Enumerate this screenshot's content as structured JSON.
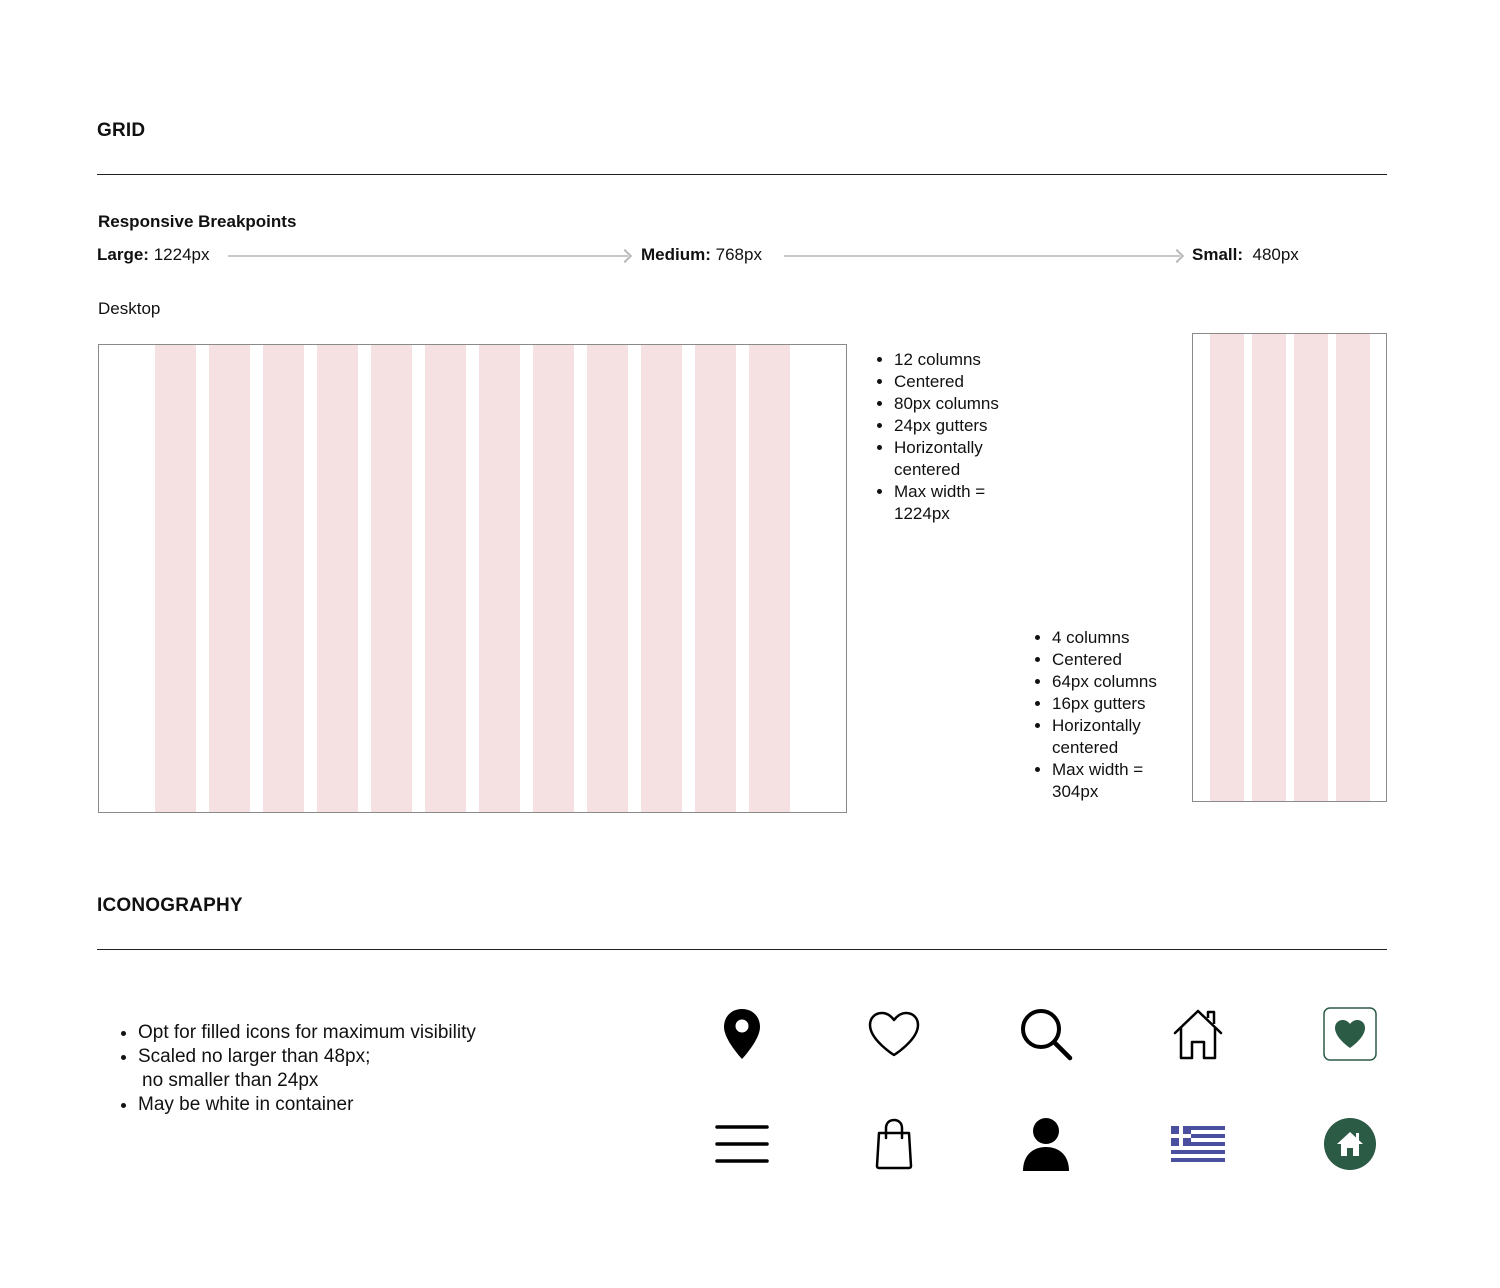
{
  "grid_section": {
    "title": "GRID",
    "breakpoints_heading": "Responsive Breakpoints",
    "breakpoints": [
      {
        "name": "Large:",
        "value": "1224px"
      },
      {
        "name": "Medium:",
        "value": "768px"
      },
      {
        "name": "Small:",
        "value": "480px"
      }
    ],
    "desktop_label": "Desktop",
    "desktop_notes": [
      "12 columns",
      "Centered",
      "80px columns",
      "24px gutters",
      "Horizontally centered",
      "Max width = 1224px"
    ],
    "mobile_notes": [
      "4 columns",
      "Centered",
      "64px columns",
      "16px gutters",
      "Horizontally centered",
      "Max width = 304px"
    ],
    "column_color": "#f5e1e1"
  },
  "icon_section": {
    "title": "ICONOGRAPHY",
    "notes": [
      "Opt for filled icons for maximum visibility",
      "Scaled no larger than 48px;",
      "no smaller than 24px",
      "May be white in container"
    ],
    "icons": [
      "location-pin-icon",
      "heart-outline-icon",
      "search-icon",
      "home-outline-icon",
      "heart-container-icon",
      "menu-icon",
      "shopping-bag-icon",
      "user-icon",
      "greek-flag-icon",
      "home-circle-icon"
    ],
    "accent_color": "#2b5a45",
    "flag_color": "#4a4fa0"
  }
}
